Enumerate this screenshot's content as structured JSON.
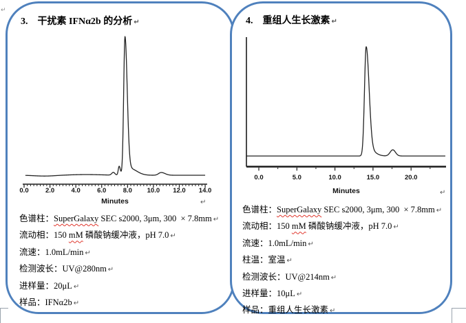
{
  "page": {
    "background": "#ffffff",
    "panel_border_color": "#4f81bd"
  },
  "marks": {
    "pilcrow": "↵"
  },
  "panels": [
    {
      "id": "left",
      "number": "3.",
      "title": "干扰素 IFNα2b 的分析",
      "specs": [
        {
          "text": "色谱柱：SuperGalaxy SEC s2000, 3μm, 300  × 7.8mm",
          "misspelled": [
            "SuperGalaxy"
          ]
        },
        {
          "text": "流动相：150 mM 磷酸钠缓冲液，pH 7.0",
          "misspelled": [
            "mM"
          ]
        },
        {
          "text": "流速：1.0mL/min",
          "misspelled": []
        },
        {
          "text": "检测波长：UV@280nm",
          "misspelled": []
        },
        {
          "text": "进样量：20μL",
          "misspelled": []
        },
        {
          "text": "样品：IFNα2b",
          "misspelled": []
        }
      ]
    },
    {
      "id": "right",
      "number": "4.",
      "title": "重组人生长激素",
      "specs": [
        {
          "text": "色谱柱：SuperGalaxy SEC s2000, 3μm, 300  × 7.8mm",
          "misspelled": [
            "SuperGalaxy"
          ]
        },
        {
          "text": "流动相：150 mM 磷酸钠缓冲液，pH 7.0",
          "misspelled": [
            "mM"
          ]
        },
        {
          "text": "流速：1.0mL/min",
          "misspelled": []
        },
        {
          "text": "柱温：室温",
          "misspelled": []
        },
        {
          "text": "检测波长：UV@214nm",
          "misspelled": []
        },
        {
          "text": "进样量：10μL",
          "misspelled": []
        },
        {
          "text": "样品：重组人生长激素",
          "misspelled": []
        }
      ]
    }
  ],
  "chart_data": [
    {
      "type": "line",
      "panel": "3",
      "title": "",
      "xlabel": "Minutes",
      "ylabel": "",
      "grid": false,
      "xlim": [
        0,
        14.1
      ],
      "major_step": 2,
      "minor_tick_step": 0.25,
      "tick_values": [
        0,
        2,
        4,
        6,
        8,
        10,
        12,
        14
      ],
      "tick_labels": [
        "0.0",
        "2.0",
        "4.0",
        "6.0",
        "8.0",
        "10.0",
        "12.0",
        "14.0"
      ],
      "main_peak_minutes": 7.8,
      "peaks_minutes": [
        {
          "t": 1.6,
          "h": -1.2,
          "sl": 0.8,
          "sr": 0.8
        },
        {
          "t": 4.8,
          "h": 1.0,
          "sl": 1.2,
          "sr": 1.2
        },
        {
          "t": 6.9,
          "h": 4,
          "sl": 0.12,
          "sr": 0.12
        },
        {
          "t": 7.35,
          "h": 13,
          "sl": 0.07,
          "sr": 0.09
        },
        {
          "t": 7.8,
          "h": 198,
          "sl": 0.1,
          "sr": 0.17
        },
        {
          "t": 8.15,
          "h": 10,
          "sl": 0.25,
          "sr": 0.55
        },
        {
          "t": 10.6,
          "h": 4,
          "sl": 0.2,
          "sr": 0.3
        }
      ]
    },
    {
      "type": "line",
      "panel": "4",
      "title": "",
      "xlabel": "Minutes",
      "ylabel": "",
      "grid": false,
      "xlim": [
        0,
        24.5
      ],
      "major_step": 5,
      "minor_tick_step": 2.5,
      "tick_values": [
        0,
        5,
        10,
        15,
        20
      ],
      "tick_labels": [
        "0.0",
        "5.0",
        "10.0",
        "15.0",
        "20.0"
      ],
      "main_peak_minutes": 14.1,
      "peaks_minutes": [
        {
          "t": 14.1,
          "h": 158,
          "sl": 0.22,
          "sr": 0.38
        },
        {
          "t": 14.7,
          "h": 7,
          "sl": 0.3,
          "sr": 0.7
        },
        {
          "t": 17.6,
          "h": 9,
          "sl": 0.35,
          "sr": 0.35
        }
      ]
    }
  ]
}
